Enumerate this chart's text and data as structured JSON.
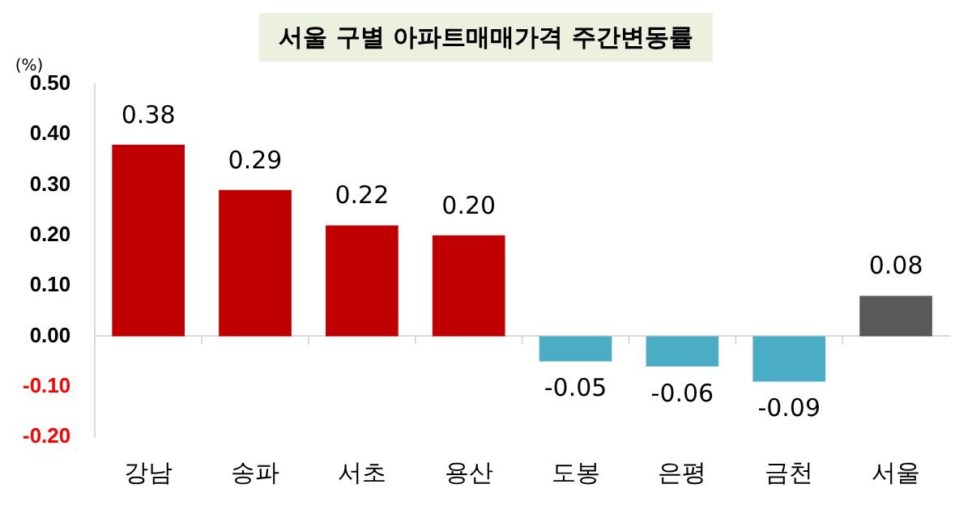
{
  "chart_data": {
    "type": "bar",
    "title": "서울 구별 아파트매매가격 주간변동률",
    "ylabel": "(%)",
    "categories": [
      "강남",
      "송파",
      "서초",
      "용산",
      "도봉",
      "은평",
      "금천",
      "서울"
    ],
    "values": [
      0.38,
      0.29,
      0.22,
      0.2,
      -0.05,
      -0.06,
      -0.09,
      0.08
    ],
    "colors": [
      "#c00000",
      "#c00000",
      "#c00000",
      "#c00000",
      "#4bacc6",
      "#4bacc6",
      "#4bacc6",
      "#595959"
    ],
    "value_labels": [
      "0.38",
      "0.29",
      "0.22",
      "0.20",
      "-0.05",
      "-0.06",
      "-0.09",
      "0.08"
    ],
    "ylim": [
      -0.2,
      0.5
    ],
    "yticks": [
      {
        "value": 0.5,
        "label": "0.50"
      },
      {
        "value": 0.4,
        "label": "0.40"
      },
      {
        "value": 0.3,
        "label": "0.30"
      },
      {
        "value": 0.2,
        "label": "0.20"
      },
      {
        "value": 0.1,
        "label": "0.10"
      },
      {
        "value": 0,
        "label": "0.00"
      },
      {
        "value": -0.1,
        "label": "-0.10"
      },
      {
        "value": -0.2,
        "label": "-0.20"
      }
    ],
    "legend": false
  }
}
